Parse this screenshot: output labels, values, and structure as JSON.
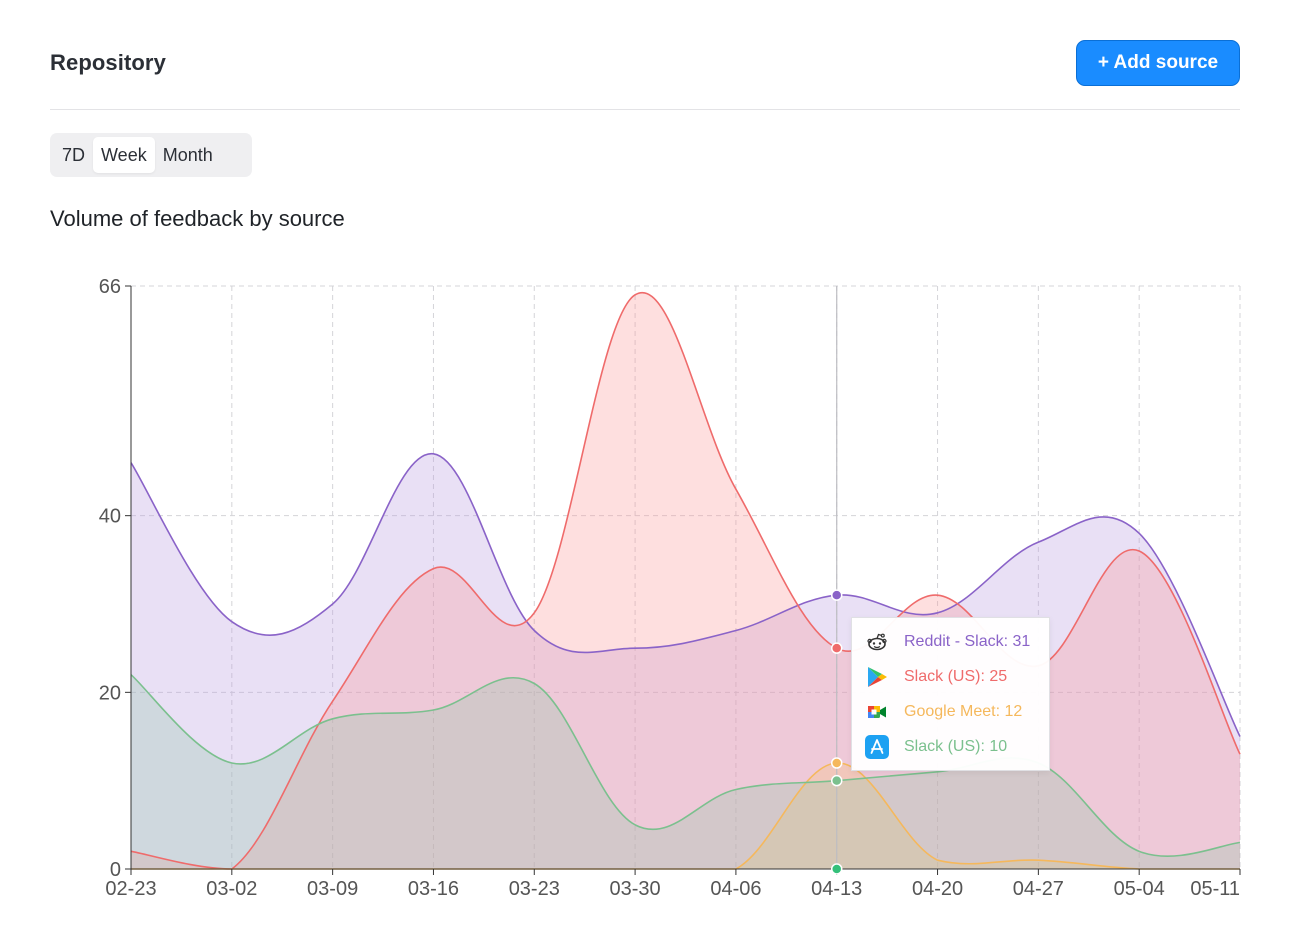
{
  "header": {
    "title": "Repository",
    "add_button_label": "+ Add source"
  },
  "range_tabs": [
    {
      "label": "7D",
      "active": false
    },
    {
      "label": "Week",
      "active": true
    },
    {
      "label": "Month",
      "active": false
    }
  ],
  "chart_data": {
    "type": "area",
    "title": "Volume of feedback by source",
    "xlabel": "",
    "ylabel": "",
    "x": [
      "02-23",
      "03-02",
      "03-09",
      "03-16",
      "03-23",
      "03-30",
      "04-06",
      "04-13",
      "04-20",
      "04-27",
      "05-04",
      "05-11"
    ],
    "ylim": [
      0,
      66
    ],
    "yticks": [
      0,
      20,
      40,
      66
    ],
    "grid": true,
    "series": [
      {
        "name": "Reddit - Slack",
        "color": "#8a63c8",
        "fill": "rgba(186,160,225,0.32)",
        "values": [
          46,
          28,
          30,
          47,
          27,
          25,
          27,
          31,
          29,
          37,
          38,
          15
        ]
      },
      {
        "name": "Slack (US)",
        "color": "#ef6b6b",
        "fill": "rgba(252,150,150,0.30)",
        "values": [
          2,
          0,
          19,
          34,
          29,
          65,
          43,
          25,
          31,
          23,
          36,
          13
        ]
      },
      {
        "name": "Google Meet",
        "color": "#f5b85c",
        "fill": "rgba(248,196,120,0.30)",
        "values": [
          0,
          0,
          0,
          0,
          0,
          0,
          0,
          12,
          1,
          1,
          0,
          0
        ]
      },
      {
        "name": "Slack (US)",
        "color": "#7bc08e",
        "fill": "rgba(150,200,170,0.30)",
        "values": [
          22,
          12,
          17,
          18,
          21,
          5,
          9,
          10,
          11,
          12,
          2,
          3
        ]
      }
    ],
    "hover_index": 7
  },
  "tooltip": {
    "rows": [
      {
        "icon": "reddit-icon",
        "text": "Reddit - Slack: 31",
        "color": "#8a63c8"
      },
      {
        "icon": "google-play-icon",
        "text": "Slack (US): 25",
        "color": "#ef6b6b"
      },
      {
        "icon": "google-meet-icon",
        "text": "Google Meet: 12",
        "color": "#f5b85c"
      },
      {
        "icon": "app-store-icon",
        "text": "Slack (US): 10",
        "color": "#7bc08e"
      }
    ]
  }
}
